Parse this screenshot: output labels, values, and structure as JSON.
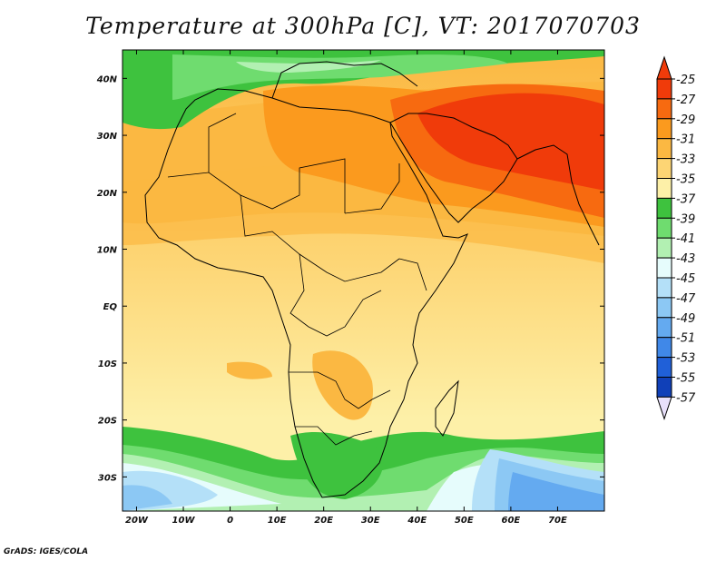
{
  "title": "Temperature at 300hPa [C], VT: 2017070703",
  "credit": "GrADS: IGES/COLA",
  "map": {
    "lat_range": [
      -36,
      45
    ],
    "lon_range": [
      -23,
      80
    ],
    "lat_labels": [
      {
        "lat": 40,
        "text": "40N"
      },
      {
        "lat": 30,
        "text": "30N"
      },
      {
        "lat": 20,
        "text": "20N"
      },
      {
        "lat": 10,
        "text": "10N"
      },
      {
        "lat": 0,
        "text": "EQ"
      },
      {
        "lat": -10,
        "text": "10S"
      },
      {
        "lat": -20,
        "text": "20S"
      },
      {
        "lat": -30,
        "text": "30S"
      }
    ],
    "lon_labels": [
      {
        "lon": -20,
        "text": "20W"
      },
      {
        "lon": -10,
        "text": "10W"
      },
      {
        "lon": 0,
        "text": "0"
      },
      {
        "lon": 10,
        "text": "10E"
      },
      {
        "lon": 20,
        "text": "20E"
      },
      {
        "lon": 30,
        "text": "30E"
      },
      {
        "lon": 40,
        "text": "40E"
      },
      {
        "lon": 50,
        "text": "50E"
      },
      {
        "lon": 60,
        "text": "60E"
      },
      {
        "lon": 70,
        "text": "70E"
      }
    ]
  },
  "colorbar": {
    "levels": [
      "-25",
      "-27",
      "-29",
      "-31",
      "-33",
      "-35",
      "-37",
      "-39",
      "-41",
      "-43",
      "-45",
      "-47",
      "-49",
      "-51",
      "-53",
      "-55",
      "-57"
    ],
    "colors": [
      "#f03b0a",
      "#f76a10",
      "#fb9a1e",
      "#fbb842",
      "#fdd574",
      "#fdf0a8",
      "#3ec23e",
      "#6fdc6f",
      "#b2f0b2",
      "#e6fcfc",
      "#b4e0f8",
      "#8cc8f4",
      "#64aaf0",
      "#4088e8",
      "#2060d8",
      "#1040b8",
      "#081070"
    ],
    "under_color": "#f03b0a",
    "over_color": "#e8e0fa"
  }
}
